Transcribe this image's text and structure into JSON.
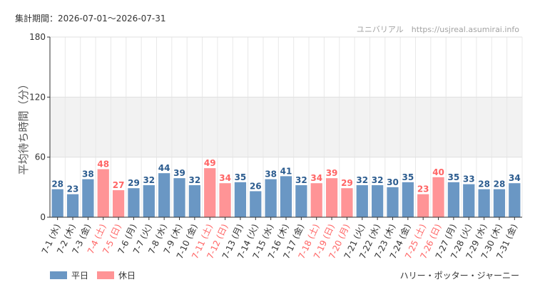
{
  "header": {
    "period": "集計期間：2026-07-01～2026-07-31",
    "source": "ユニバリアル　https://usjreal.asumirai.info"
  },
  "footer": {
    "attraction": "ハリー・ポッター・ジャーニー"
  },
  "chart_data": {
    "type": "bar",
    "ylabel": "平均待ち時間（分）",
    "ylim": [
      0,
      180
    ],
    "yticks": [
      0,
      60,
      120,
      180
    ],
    "bands": [
      [
        60,
        120
      ]
    ],
    "grid": true,
    "legend_position": "bottom-left",
    "colors": {
      "weekday": "#6a97c4",
      "holiday": "#ff9496",
      "weekday_label": "#2c5c8f",
      "holiday_label": "#ff6464"
    },
    "series": [
      {
        "name": "平日",
        "key": "weekday"
      },
      {
        "name": "休日",
        "key": "holiday"
      }
    ],
    "categories": [
      "7-1 (水)",
      "7-2 (木)",
      "7-3 (金)",
      "7-4 (土)",
      "7-5 (日)",
      "7-6 (月)",
      "7-7 (火)",
      "7-8 (水)",
      "7-9 (木)",
      "7-10 (金)",
      "7-11 (土)",
      "7-12 (日)",
      "7-13 (月)",
      "7-14 (火)",
      "7-15 (水)",
      "7-16 (木)",
      "7-17 (金)",
      "7-18 (土)",
      "7-19 (日)",
      "7-20 (月)",
      "7-21 (火)",
      "7-22 (水)",
      "7-23 (木)",
      "7-24 (金)",
      "7-25 (土)",
      "7-26 (日)",
      "7-27 (月)",
      "7-28 (火)",
      "7-29 (水)",
      "7-30 (木)",
      "7-31 (金)"
    ],
    "values": [
      28,
      23,
      38,
      48,
      27,
      29,
      32,
      44,
      39,
      32,
      49,
      34,
      35,
      26,
      38,
      41,
      32,
      34,
      39,
      29,
      32,
      32,
      30,
      35,
      23,
      40,
      35,
      33,
      28,
      28,
      34
    ],
    "day_types": [
      "weekday",
      "weekday",
      "weekday",
      "holiday",
      "holiday",
      "weekday",
      "weekday",
      "weekday",
      "weekday",
      "weekday",
      "holiday",
      "holiday",
      "weekday",
      "weekday",
      "weekday",
      "weekday",
      "weekday",
      "holiday",
      "holiday",
      "holiday",
      "weekday",
      "weekday",
      "weekday",
      "weekday",
      "holiday",
      "holiday",
      "weekday",
      "weekday",
      "weekday",
      "weekday",
      "weekday"
    ]
  }
}
